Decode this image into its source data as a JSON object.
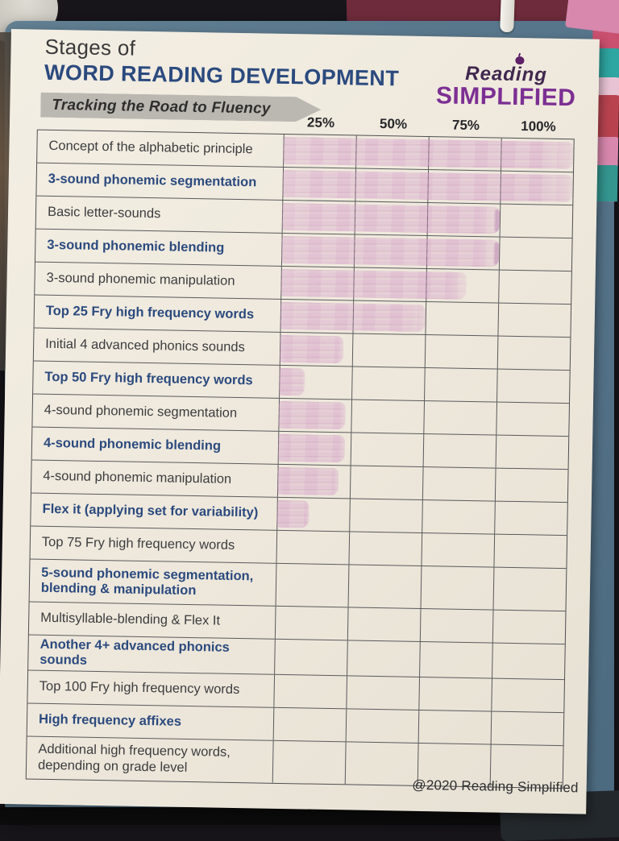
{
  "page": {
    "title_line1": "Stages of",
    "title_line2": "WORD READING DEVELOPMENT",
    "banner": "Tracking the Road to Fluency",
    "footer": "@2020 Reading Simplified"
  },
  "logo": {
    "word1": "Reading",
    "word2": "SIMPLIFIED"
  },
  "colors": {
    "navy_text": "#2b4a7e",
    "brand_purple": "#7c2f93",
    "highlight_pink": "#c77fb6",
    "highlight_dark_edge": "#923a92",
    "clipboard_blue": "#56748a",
    "paper": "#efe9dd"
  },
  "table": {
    "column_headers": [
      "25%",
      "50%",
      "75%",
      "100%"
    ],
    "rows": [
      {
        "label": "Concept of the alphabetic principle",
        "emphasis": false,
        "progress": 1.0,
        "edge": false,
        "tall": false
      },
      {
        "label": "3-sound phonemic segmentation",
        "emphasis": true,
        "progress": 1.0,
        "edge": false,
        "tall": false
      },
      {
        "label": "Basic letter-sounds",
        "emphasis": false,
        "progress": 0.75,
        "edge": true,
        "tall": false
      },
      {
        "label": "3-sound phonemic blending",
        "emphasis": true,
        "progress": 0.75,
        "edge": true,
        "tall": false
      },
      {
        "label": "3-sound phonemic manipulation",
        "emphasis": false,
        "progress": 0.64,
        "edge": false,
        "tall": false
      },
      {
        "label": "Top 25 Fry high frequency words",
        "emphasis": true,
        "progress": 0.5,
        "edge": false,
        "tall": false
      },
      {
        "label": "Initial 4 advanced phonics sounds",
        "emphasis": false,
        "progress": 0.22,
        "edge": false,
        "tall": false
      },
      {
        "label": "Top 50 Fry high frequency words",
        "emphasis": true,
        "progress": 0.09,
        "edge": false,
        "tall": false
      },
      {
        "label": "4-sound phonemic segmentation",
        "emphasis": false,
        "progress": 0.23,
        "edge": false,
        "tall": false
      },
      {
        "label": "4-sound phonemic blending",
        "emphasis": true,
        "progress": 0.23,
        "edge": false,
        "tall": false
      },
      {
        "label": "4-sound phonemic manipulation",
        "emphasis": false,
        "progress": 0.21,
        "edge": false,
        "tall": false
      },
      {
        "label": "Flex it (applying set for variability)",
        "emphasis": true,
        "progress": 0.11,
        "edge": false,
        "tall": false
      },
      {
        "label": "Top 75 Fry high frequency words",
        "emphasis": false,
        "progress": 0,
        "edge": false,
        "tall": false
      },
      {
        "label": "5-sound phonemic segmentation, blending & manipulation",
        "emphasis": true,
        "progress": 0,
        "edge": false,
        "tall": true
      },
      {
        "label": "Multisyllable-blending & Flex It",
        "emphasis": false,
        "progress": 0,
        "edge": false,
        "tall": false
      },
      {
        "label": "Another 4+ advanced phonics sounds",
        "emphasis": true,
        "progress": 0,
        "edge": false,
        "tall": false
      },
      {
        "label": "Top 100 Fry high frequency words",
        "emphasis": false,
        "progress": 0,
        "edge": false,
        "tall": false
      },
      {
        "label": "High frequency affixes",
        "emphasis": true,
        "progress": 0,
        "edge": false,
        "tall": false
      },
      {
        "label": "Additional high frequency words, depending on grade level",
        "emphasis": false,
        "progress": 0,
        "edge": false,
        "tall": true
      }
    ]
  }
}
